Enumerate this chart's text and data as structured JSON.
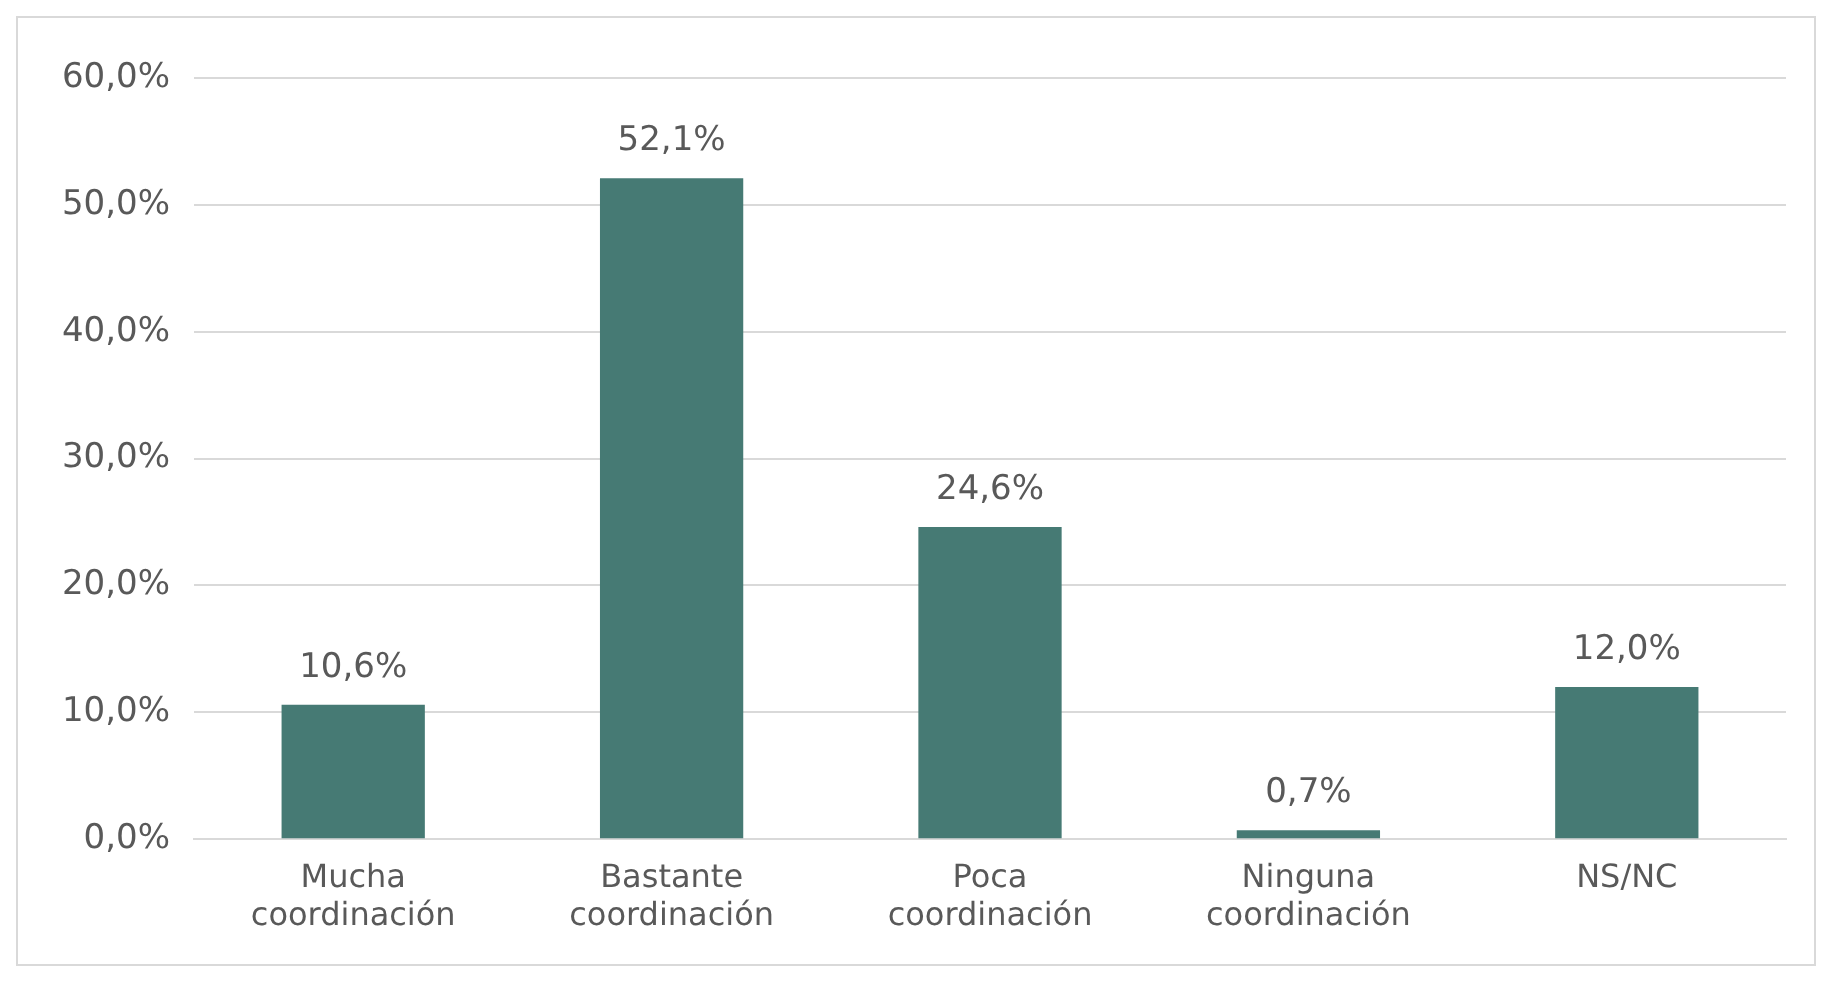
{
  "chart_data": {
    "type": "bar",
    "categories": [
      "Mucha coordinación",
      "Bastante coordinación",
      "Poca coordinación",
      "Ninguna coordinación",
      "NS/NC"
    ],
    "values": [
      10.6,
      52.1,
      24.6,
      0.7,
      12.0
    ],
    "value_labels": [
      "10,6%",
      "52,1%",
      "24,6%",
      "0,7%",
      "12,0%"
    ],
    "color": "#467a74",
    "ylim": [
      0,
      60
    ],
    "yticks": [
      {
        "value": 0,
        "label": "0,0%"
      },
      {
        "value": 10,
        "label": "10,0%"
      },
      {
        "value": 20,
        "label": "20,0%"
      },
      {
        "value": 30,
        "label": "30,0%"
      },
      {
        "value": 40,
        "label": "40,0%"
      },
      {
        "value": 50,
        "label": "50,0%"
      },
      {
        "value": 60,
        "label": "60,0%"
      }
    ],
    "grid": "y",
    "legend": false
  }
}
